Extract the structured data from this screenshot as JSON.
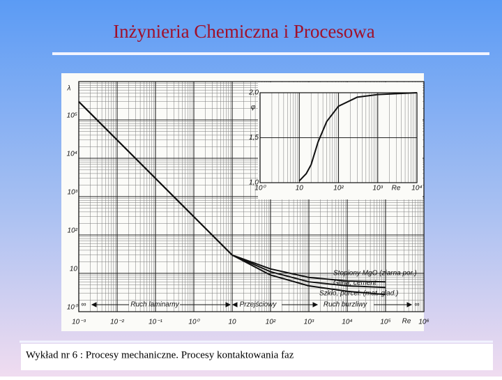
{
  "header": {
    "title": "Inżynieria Chemiczna i Procesowa"
  },
  "footer": {
    "text": "Wykład nr 6  : Procesy mechaniczne.  Procesy kontaktowania faz"
  },
  "chart_data": [
    {
      "type": "line",
      "y_label": "λ",
      "x_label": "Re",
      "x_log": true,
      "y_log": true,
      "grid": true,
      "xlim": [
        0.001,
        1000000
      ],
      "ylim": [
        1,
        1000000
      ],
      "xticks": [
        {
          "value": 0.001,
          "label": "10⁻³"
        },
        {
          "value": 0.01,
          "label": "10⁻²"
        },
        {
          "value": 0.1,
          "label": "10⁻¹"
        },
        {
          "value": 1,
          "label": "10⁰"
        },
        10,
        {
          "value": 100,
          "label": "10²"
        },
        {
          "value": 1000,
          "label": "10³"
        },
        {
          "value": 10000,
          "label": "10⁴"
        },
        {
          "value": 100000,
          "label": "10⁵"
        },
        {
          "value": 1000000,
          "label": "10⁶"
        }
      ],
      "yticks": [
        {
          "value": 1,
          "label": "10⁰"
        },
        10,
        {
          "value": 100,
          "label": "10²"
        },
        {
          "value": 1000,
          "label": "10³"
        },
        {
          "value": 10000,
          "label": "10⁴"
        },
        {
          "value": 100000,
          "label": "10⁵"
        }
      ],
      "annotations": [
        "∞",
        "Ruch laminarny",
        "Przejściowy",
        "Ruch burzliwy",
        "∞"
      ],
      "series": [
        {
          "name": "Stopiony MgO (ziarna por.)",
          "color": "#111111",
          "x": [
            0.001,
            0.01,
            0.1,
            1,
            10,
            100,
            1000,
            10000,
            100000
          ],
          "values": [
            300000,
            30000,
            3000,
            300,
            30,
            13,
            7.8,
            6.3,
            6
          ]
        },
        {
          "name": "Glina, cement",
          "color": "#111111",
          "x": [
            0.001,
            0.01,
            0.1,
            1,
            10,
            100,
            1000,
            10000,
            100000
          ],
          "values": [
            300000,
            30000,
            3000,
            300,
            30,
            11,
            6,
            4.7,
            4.3
          ]
        },
        {
          "name": "Szkło, porcel. (mat. gład.)",
          "color": "#111111",
          "x": [
            0.001,
            0.01,
            0.1,
            1,
            10,
            100,
            1000,
            10000,
            100000
          ],
          "values": [
            300000,
            30000,
            3000,
            300,
            30,
            9,
            4.7,
            3.4,
            2.8
          ]
        }
      ]
    },
    {
      "type": "line",
      "y_label": "φ",
      "x_label": "Re",
      "x_log": true,
      "grid": true,
      "xlim": [
        1,
        10000
      ],
      "ylim": [
        1,
        2
      ],
      "xticks": [
        {
          "value": 1,
          "label": "10⁰"
        },
        10,
        {
          "value": 100,
          "label": "10²"
        },
        {
          "value": 1000,
          "label": "10³"
        },
        {
          "value": 10000,
          "label": "10⁴"
        }
      ],
      "yticks": [
        {
          "value": 1,
          "label": "1,0"
        },
        {
          "value": 1.5,
          "label": "1,5"
        },
        {
          "value": 2,
          "label": "2,0"
        }
      ],
      "series": [
        {
          "color": "#111111",
          "x": [
            10,
            15,
            20,
            30,
            50,
            100,
            300,
            1000,
            10000
          ],
          "values": [
            1.02,
            1.1,
            1.2,
            1.45,
            1.68,
            1.85,
            1.95,
            1.98,
            2.0
          ]
        }
      ]
    }
  ]
}
